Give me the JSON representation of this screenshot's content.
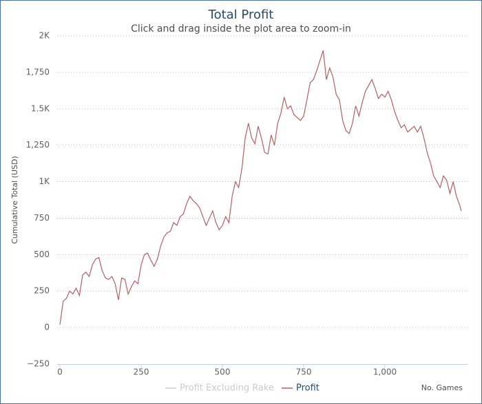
{
  "chart_data": {
    "type": "line",
    "title": "Total Profit",
    "subtitle": "Click and drag inside the plot area to zoom-in",
    "y_label": "Cumulative Total (USD)",
    "x_label": "No. Games",
    "x": [
      0,
      10,
      20,
      30,
      40,
      50,
      60,
      70,
      80,
      90,
      100,
      110,
      120,
      130,
      140,
      150,
      160,
      170,
      180,
      190,
      200,
      210,
      220,
      230,
      240,
      250,
      260,
      270,
      280,
      290,
      300,
      310,
      320,
      330,
      340,
      350,
      360,
      370,
      380,
      390,
      400,
      410,
      420,
      430,
      440,
      450,
      460,
      470,
      480,
      490,
      500,
      510,
      520,
      530,
      540,
      550,
      560,
      570,
      580,
      590,
      600,
      610,
      620,
      630,
      640,
      650,
      660,
      670,
      680,
      690,
      700,
      710,
      720,
      730,
      740,
      750,
      760,
      770,
      780,
      790,
      800,
      810,
      820,
      830,
      840,
      850,
      860,
      870,
      880,
      890,
      900,
      910,
      920,
      930,
      940,
      950,
      960,
      970,
      980,
      990,
      1000,
      1010,
      1020,
      1030,
      1040,
      1050,
      1060,
      1070,
      1080,
      1090,
      1100,
      1110,
      1120,
      1130,
      1140,
      1150,
      1160,
      1170,
      1180,
      1190,
      1200,
      1210,
      1220,
      1230,
      1235
    ],
    "series": [
      {
        "name": "Profit",
        "color": "#b5605f",
        "values": [
          20,
          180,
          200,
          250,
          230,
          270,
          220,
          360,
          380,
          350,
          430,
          470,
          480,
          390,
          340,
          330,
          350,
          300,
          190,
          340,
          330,
          230,
          280,
          320,
          300,
          430,
          500,
          510,
          460,
          420,
          470,
          560,
          620,
          650,
          660,
          720,
          700,
          760,
          780,
          850,
          900,
          870,
          850,
          820,
          760,
          700,
          750,
          800,
          720,
          670,
          700,
          760,
          720,
          900,
          1000,
          960,
          1090,
          1300,
          1400,
          1300,
          1260,
          1380,
          1300,
          1200,
          1190,
          1320,
          1250,
          1400,
          1470,
          1580,
          1500,
          1520,
          1460,
          1440,
          1420,
          1450,
          1560,
          1680,
          1700,
          1760,
          1830,
          1900,
          1700,
          1780,
          1720,
          1600,
          1560,
          1420,
          1350,
          1330,
          1400,
          1520,
          1450,
          1540,
          1620,
          1660,
          1700,
          1640,
          1570,
          1600,
          1580,
          1620,
          1560,
          1480,
          1420,
          1370,
          1390,
          1340,
          1360,
          1380,
          1340,
          1380,
          1300,
          1200,
          1130,
          1040,
          1000,
          960,
          1040,
          1010,
          920,
          1000,
          900,
          840,
          800
        ]
      }
    ],
    "hidden_series": [
      {
        "name": "Profit Excluding Rake",
        "color": "#cccccc"
      }
    ],
    "xlim": [
      0,
      1250
    ],
    "xticks": [
      0,
      250,
      500,
      750,
      {
        "value": 1000,
        "label": "1,000"
      }
    ],
    "ylim": [
      -250,
      2000
    ],
    "yticks": [
      {
        "value": -250,
        "label": "−250"
      },
      0,
      250,
      500,
      750,
      {
        "value": 1000,
        "label": "1K"
      },
      {
        "value": 1250,
        "label": "1,250"
      },
      {
        "value": 1500,
        "label": "1.5K"
      },
      {
        "value": 1750,
        "label": "1,750"
      },
      {
        "value": 2000,
        "label": "2K"
      }
    ],
    "grid": true
  }
}
